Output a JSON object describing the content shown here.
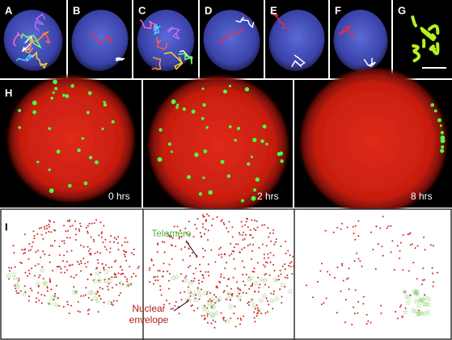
{
  "panel_labels": [
    "A",
    "B",
    "C",
    "D",
    "E",
    "F",
    "G",
    "H",
    "I"
  ],
  "time_labels": [
    "0 hrs",
    "2 hrs",
    "8 hrs"
  ],
  "annotations": {
    "telomere": "Telomere",
    "nuclear_envelope": [
      "Nuclear",
      "envelope"
    ]
  }
}
